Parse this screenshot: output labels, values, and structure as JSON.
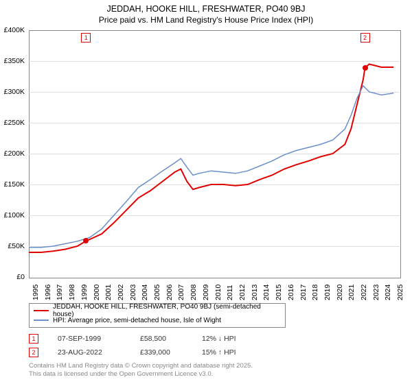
{
  "title": "JEDDAH, HOOKE HILL, FRESHWATER, PO40 9BJ",
  "subtitle": "Price paid vs. HM Land Registry's House Price Index (HPI)",
  "chart": {
    "type": "line",
    "background_color": "#ffffff",
    "border_color": "#888888",
    "grid_color": "#dddddd",
    "xlim": [
      1995,
      2025.5
    ],
    "ylim": [
      0,
      400000
    ],
    "ytick_step": 50000,
    "yticks": [
      "£0",
      "£50K",
      "£100K",
      "£150K",
      "£200K",
      "£250K",
      "£300K",
      "£350K",
      "£400K"
    ],
    "xticks": [
      1995,
      1996,
      1997,
      1998,
      1999,
      2000,
      2001,
      2002,
      2003,
      2004,
      2005,
      2006,
      2007,
      2008,
      2009,
      2010,
      2011,
      2012,
      2013,
      2014,
      2015,
      2016,
      2017,
      2018,
      2019,
      2020,
      2021,
      2022,
      2023,
      2024,
      2025
    ],
    "tick_fontsize": 10.5,
    "series": [
      {
        "name": "price_paid",
        "color": "#e00000",
        "line_width": 2,
        "x": [
          1995,
          1996,
          1997,
          1998,
          1999,
          1999.7,
          2000,
          2001,
          2002,
          2003,
          2004,
          2005,
          2006,
          2007,
          2007.5,
          2008,
          2008.5,
          2009,
          2010,
          2011,
          2012,
          2013,
          2014,
          2015,
          2016,
          2017,
          2018,
          2019,
          2020,
          2021,
          2021.5,
          2022,
          2022.5,
          2022.65,
          2023,
          2024,
          2025
        ],
        "y": [
          40000,
          40000,
          42000,
          45000,
          50000,
          58500,
          61000,
          70000,
          88000,
          108000,
          128000,
          140000,
          155000,
          170000,
          175000,
          155000,
          142000,
          145000,
          150000,
          150000,
          148000,
          150000,
          158000,
          165000,
          175000,
          182000,
          188000,
          195000,
          200000,
          215000,
          240000,
          280000,
          320000,
          339000,
          345000,
          340000,
          340000
        ]
      },
      {
        "name": "hpi",
        "color": "#6a8fc8",
        "line_width": 1.5,
        "x": [
          1995,
          1996,
          1997,
          1998,
          1999,
          2000,
          2001,
          2002,
          2003,
          2004,
          2005,
          2006,
          2007,
          2007.5,
          2008,
          2008.5,
          2009,
          2010,
          2011,
          2012,
          2013,
          2014,
          2015,
          2016,
          2017,
          2018,
          2019,
          2020,
          2021,
          2021.5,
          2022,
          2022.5,
          2023,
          2024,
          2025
        ],
        "y": [
          48000,
          48000,
          50000,
          54000,
          58000,
          64000,
          78000,
          100000,
          122000,
          145000,
          158000,
          172000,
          185000,
          192000,
          178000,
          165000,
          168000,
          172000,
          170000,
          168000,
          172000,
          180000,
          188000,
          198000,
          205000,
          210000,
          215000,
          222000,
          240000,
          262000,
          290000,
          310000,
          300000,
          295000,
          298000
        ]
      }
    ],
    "markers": [
      {
        "n": "1",
        "x": 1999.7,
        "y": 58500,
        "box_top": true,
        "color": "#e00000"
      },
      {
        "n": "2",
        "x": 2022.65,
        "y": 339000,
        "box_top": true,
        "color": "#e00000"
      }
    ]
  },
  "legend": {
    "items": [
      {
        "color": "#e00000",
        "label": "JEDDAH, HOOKE HILL, FRESHWATER, PO40 9BJ (semi-detached house)"
      },
      {
        "color": "#6a8fc8",
        "label": "HPI: Average price, semi-detached house, Isle of Wight"
      }
    ]
  },
  "annotations": [
    {
      "n": "1",
      "color": "#e00000",
      "date": "07-SEP-1999",
      "price": "£58,500",
      "pct": "12% ↓ HPI"
    },
    {
      "n": "2",
      "color": "#e00000",
      "date": "23-AUG-2022",
      "price": "£339,000",
      "pct": "15% ↑ HPI"
    }
  ],
  "footer": {
    "line1": "Contains HM Land Registry data © Crown copyright and database right 2025.",
    "line2": "This data is licensed under the Open Government Licence v3.0."
  }
}
